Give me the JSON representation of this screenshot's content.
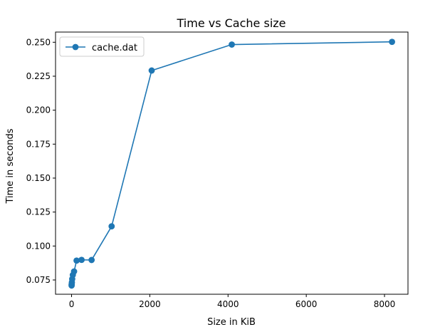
{
  "chart_data": {
    "type": "line",
    "title": "Time vs Cache size",
    "xlabel": "Size in KiB",
    "ylabel": "Time in seconds",
    "xlim": [
      -410,
      8600
    ],
    "ylim": [
      0.0645,
      0.2575
    ],
    "x_ticks": [
      0,
      2000,
      4000,
      6000,
      8000
    ],
    "y_ticks": [
      0.075,
      0.1,
      0.125,
      0.15,
      0.175,
      0.2,
      0.225,
      0.25
    ],
    "x_tick_labels": [
      "0",
      "2000",
      "4000",
      "6000",
      "8000"
    ],
    "y_tick_labels": [
      "0.075",
      "0.100",
      "0.125",
      "0.150",
      "0.175",
      "0.200",
      "0.225",
      "0.250"
    ],
    "grid": false,
    "legend_position": "top-left",
    "series": [
      {
        "name": "cache.dat",
        "color": "#1f77b4",
        "marker": "circle",
        "x": [
          1,
          2,
          4,
          8,
          16,
          32,
          64,
          128,
          256,
          512,
          1024,
          2048,
          4096,
          8192
        ],
        "y": [
          0.0709,
          0.0715,
          0.0722,
          0.0733,
          0.0757,
          0.0787,
          0.0813,
          0.0893,
          0.0898,
          0.0897,
          0.1145,
          0.2292,
          0.2483,
          0.2503
        ]
      }
    ]
  }
}
